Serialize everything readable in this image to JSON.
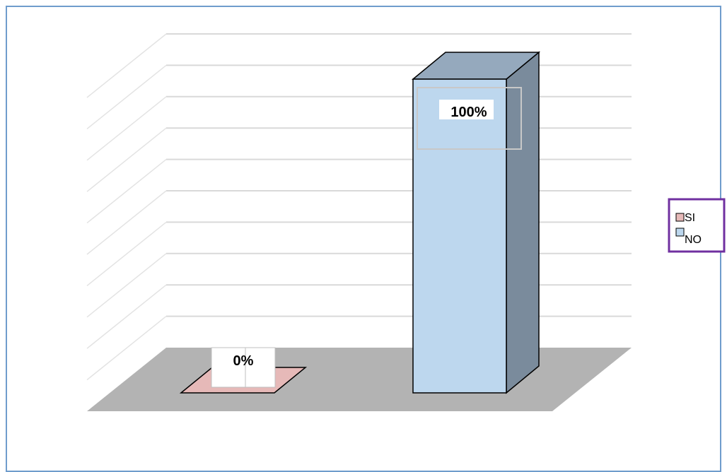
{
  "chart_data": {
    "type": "bar",
    "categories": [
      "SI",
      "NO"
    ],
    "values": [
      0,
      100
    ],
    "data_labels": [
      "0%",
      "100%"
    ],
    "ylim": [
      0,
      100
    ],
    "grid": true,
    "three_d": true,
    "legend_position": "right",
    "legend": [
      {
        "label": "SI",
        "color": "#e6b9b8"
      },
      {
        "label": "NO",
        "color": "#bdd7ee"
      }
    ],
    "colors": {
      "si_front": "#e6b9b8",
      "no_front": "#bdd7ee",
      "no_top": "#95a9bd",
      "no_side": "#7a8b9c",
      "floor": "#b3b3b3",
      "legend_border": "#7030a0",
      "frame_border": "#6f9ccc"
    }
  }
}
